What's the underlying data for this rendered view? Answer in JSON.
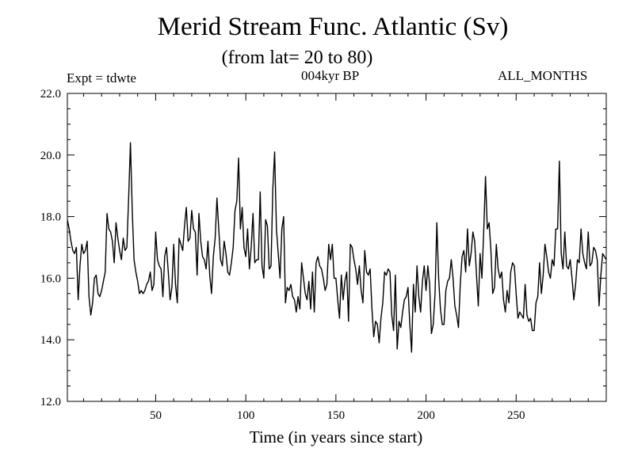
{
  "header": {
    "expt": "Expt = tdwte",
    "period": "004kyr BP",
    "months": "ALL_MONTHS"
  },
  "chart_data": {
    "type": "line",
    "title": "Merid Stream Func. Atlantic (Sv)",
    "subtitle": "(from lat= 20 to 80)",
    "xlabel": "Time (in years since start)",
    "ylabel": "",
    "xlim": [
      1,
      300
    ],
    "ylim": [
      12,
      22
    ],
    "xticks": [
      50,
      100,
      150,
      200,
      250
    ],
    "xtick_labels": [
      "50",
      "100",
      "150",
      "200",
      "250"
    ],
    "yticks": [
      12,
      14,
      16,
      18,
      20,
      22
    ],
    "ytick_labels": [
      "12.0",
      "14.0",
      "16.0",
      "18.0",
      "20.0",
      "22.0"
    ],
    "series": [
      {
        "name": "Merid Stream Func. Atlantic",
        "color": "#000000",
        "values": [
          17.9,
          17.6,
          17.2,
          16.9,
          16.8,
          17.0,
          15.3,
          16.4,
          17.1,
          16.8,
          16.9,
          17.2,
          15.4,
          14.8,
          15.2,
          16.0,
          16.1,
          15.5,
          15.4,
          15.6,
          15.9,
          16.2,
          18.1,
          17.6,
          17.5,
          17.2,
          16.5,
          17.8,
          17.3,
          16.9,
          16.6,
          17.3,
          16.9,
          17.0,
          18.6,
          20.4,
          18.2,
          16.6,
          16.2,
          15.9,
          15.5,
          15.6,
          15.5,
          15.6,
          15.8,
          15.9,
          16.2,
          15.6,
          15.8,
          17.5,
          16.6,
          16.4,
          16.3,
          15.4,
          16.7,
          17.0,
          16.2,
          15.3,
          15.7,
          17.1,
          15.8,
          15.2,
          17.3,
          17.1,
          16.9,
          17.7,
          18.3,
          17.2,
          17.3,
          18.2,
          17.6,
          17.5,
          16.1,
          18.1,
          17.2,
          16.7,
          16.6,
          16.3,
          17.2,
          16.1,
          15.5,
          16.7,
          17.3,
          18.6,
          17.6,
          16.6,
          16.4,
          17.2,
          16.8,
          16.2,
          16.1,
          16.5,
          17.0,
          18.2,
          18.5,
          19.9,
          17.6,
          18.3,
          17.0,
          16.7,
          17.6,
          16.3,
          17.0,
          18.1,
          16.5,
          16.6,
          16.6,
          18.8,
          16.4,
          16.0,
          17.9,
          17.7,
          16.3,
          16.4,
          18.9,
          20.1,
          17.6,
          16.8,
          16.0,
          17.6,
          18.0,
          15.2,
          15.7,
          15.6,
          15.8,
          15.4,
          15.3,
          14.9,
          15.4,
          15.0,
          16.5,
          16.0,
          15.5,
          15.3,
          15.9,
          15.0,
          16.2,
          14.9,
          16.5,
          16.7,
          16.4,
          16.3,
          16.0,
          15.6,
          15.8,
          17.1,
          16.6,
          17.1,
          16.0,
          16.0,
          15.3,
          14.7,
          16.1,
          15.3,
          15.9,
          16.2,
          14.6,
          17.1,
          17.0,
          16.6,
          16.3,
          15.8,
          16.4,
          15.6,
          15.2,
          16.9,
          16.2,
          16.1,
          16.3,
          15.0,
          14.1,
          14.6,
          14.5,
          13.9,
          14.7,
          15.2,
          16.2,
          16.1,
          16.3,
          16.2,
          14.8,
          14.3,
          16.1,
          13.7,
          14.6,
          14.4,
          14.9,
          15.3,
          15.4,
          15.7,
          14.5,
          13.6,
          15.8,
          14.9,
          16.4,
          15.4,
          14.9,
          15.9,
          16.4,
          15.6,
          16.4,
          15.8,
          14.2,
          14.5,
          15.5,
          17.8,
          16.0,
          15.0,
          14.5,
          14.5,
          15.6,
          15.9,
          16.0,
          16.6,
          16.0,
          15.1,
          14.8,
          14.4,
          15.8,
          16.7,
          16.9,
          16.2,
          17.6,
          16.4,
          16.8,
          17.5,
          17.2,
          16.1,
          15.1,
          16.8,
          16.0,
          17.5,
          19.3,
          17.6,
          17.8,
          16.9,
          15.5,
          15.7,
          17.1,
          16.3,
          16.0,
          16.2,
          15.3,
          14.9,
          15.6,
          15.2,
          16.2,
          16.5,
          16.4,
          15.5,
          14.7,
          14.9,
          14.8,
          14.7,
          15.8,
          14.8,
          14.6,
          14.7,
          14.3,
          14.3,
          15.2,
          15.4,
          16.5,
          15.5,
          16.1,
          17.1,
          16.7,
          16.2,
          16.0,
          16.6,
          16.4,
          17.6,
          17.6,
          19.8,
          16.8,
          16.3,
          17.5,
          16.4,
          16.3,
          16.6,
          16.0,
          15.3,
          15.8,
          16.6,
          16.5,
          17.6,
          16.8,
          16.5,
          16.3,
          17.5,
          16.4,
          16.5,
          17.0,
          16.9,
          16.6,
          15.1,
          16.1,
          16.8,
          16.7,
          16.6
        ]
      }
    ]
  }
}
